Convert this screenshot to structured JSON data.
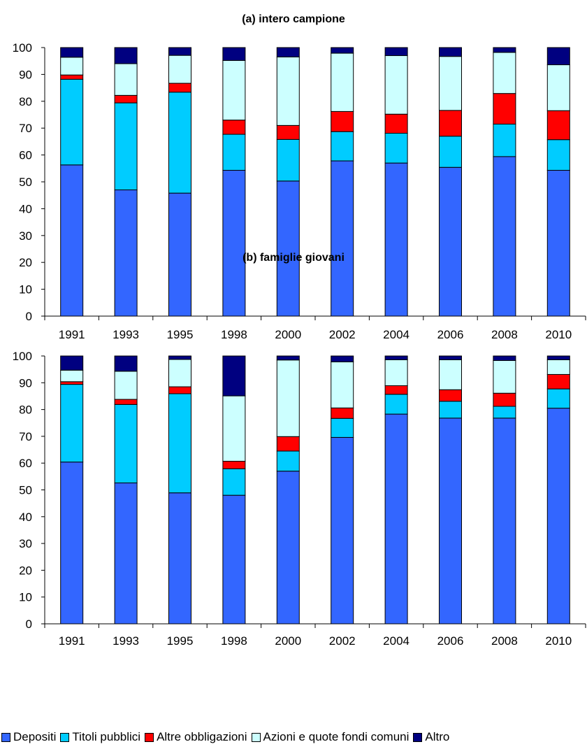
{
  "legend": [
    {
      "label": "Depositi",
      "color": "#3366ff"
    },
    {
      "label": "Titoli pubblici",
      "color": "#00ccff"
    },
    {
      "label": "Altre obbligazioni",
      "color": "#ff0000"
    },
    {
      "label": "Azioni e quote fondi comuni",
      "color": "#ccffff"
    },
    {
      "label": "Altro",
      "color": "#000080"
    }
  ],
  "chart_data": [
    {
      "type": "bar",
      "stacked": true,
      "title": "(a) intero campione",
      "categories": [
        "1991",
        "1993",
        "1995",
        "1998",
        "2000",
        "2002",
        "2004",
        "2006",
        "2008",
        "2010"
      ],
      "ylim": [
        0,
        100
      ],
      "yticks": [
        0,
        10,
        20,
        30,
        40,
        50,
        60,
        70,
        80,
        90,
        100
      ],
      "legend_position": "bottom",
      "grid": false,
      "series": [
        {
          "name": "Depositi",
          "color": "#3366ff",
          "values": [
            56.3,
            47.0,
            45.8,
            54.3,
            50.3,
            57.8,
            57.0,
            55.4,
            59.4,
            54.3
          ]
        },
        {
          "name": "Titoli pubblici",
          "color": "#00ccff",
          "values": [
            31.9,
            32.4,
            37.6,
            13.4,
            15.5,
            10.9,
            11.1,
            11.6,
            12.1,
            11.4
          ]
        },
        {
          "name": "Altre obbligazioni",
          "color": "#ff0000",
          "values": [
            1.6,
            2.8,
            3.3,
            5.3,
            5.2,
            7.5,
            7.1,
            9.6,
            11.4,
            10.8
          ]
        },
        {
          "name": "Azioni e quote fondi comuni",
          "color": "#ccffff",
          "values": [
            6.6,
            11.8,
            10.4,
            22.2,
            25.5,
            21.7,
            21.8,
            20.1,
            15.3,
            17.1
          ]
        },
        {
          "name": "Altro",
          "color": "#000080",
          "values": [
            3.6,
            6.0,
            2.9,
            4.8,
            3.5,
            2.1,
            3.0,
            3.3,
            1.8,
            6.4
          ]
        }
      ]
    },
    {
      "type": "bar",
      "stacked": true,
      "title": "(b) famiglie giovani",
      "categories": [
        "1991",
        "1993",
        "1995",
        "1998",
        "2000",
        "2002",
        "2004",
        "2006",
        "2008",
        "2010"
      ],
      "ylim": [
        0,
        100
      ],
      "yticks": [
        0,
        10,
        20,
        30,
        40,
        50,
        60,
        70,
        80,
        90,
        100
      ],
      "legend_position": "bottom",
      "grid": false,
      "series": [
        {
          "name": "Depositi",
          "color": "#3366ff",
          "values": [
            60.4,
            52.6,
            48.9,
            48.0,
            57.0,
            69.6,
            78.3,
            76.8,
            76.8,
            80.5
          ]
        },
        {
          "name": "Titoli pubblici",
          "color": "#00ccff",
          "values": [
            29.0,
            29.3,
            37.0,
            9.9,
            7.5,
            7.1,
            7.4,
            6.3,
            4.4,
            7.2
          ]
        },
        {
          "name": "Altre obbligazioni",
          "color": "#ff0000",
          "values": [
            1.0,
            1.9,
            2.6,
            2.8,
            5.4,
            3.9,
            3.2,
            4.3,
            4.9,
            5.4
          ]
        },
        {
          "name": "Azioni e quote fondi comuni",
          "color": "#ccffff",
          "values": [
            4.3,
            10.5,
            10.2,
            24.4,
            28.6,
            17.2,
            9.7,
            11.2,
            12.2,
            5.5
          ]
        },
        {
          "name": "Altro",
          "color": "#000080",
          "values": [
            5.3,
            5.7,
            1.3,
            14.9,
            1.5,
            2.2,
            1.4,
            1.4,
            1.7,
            1.4
          ]
        }
      ]
    }
  ]
}
